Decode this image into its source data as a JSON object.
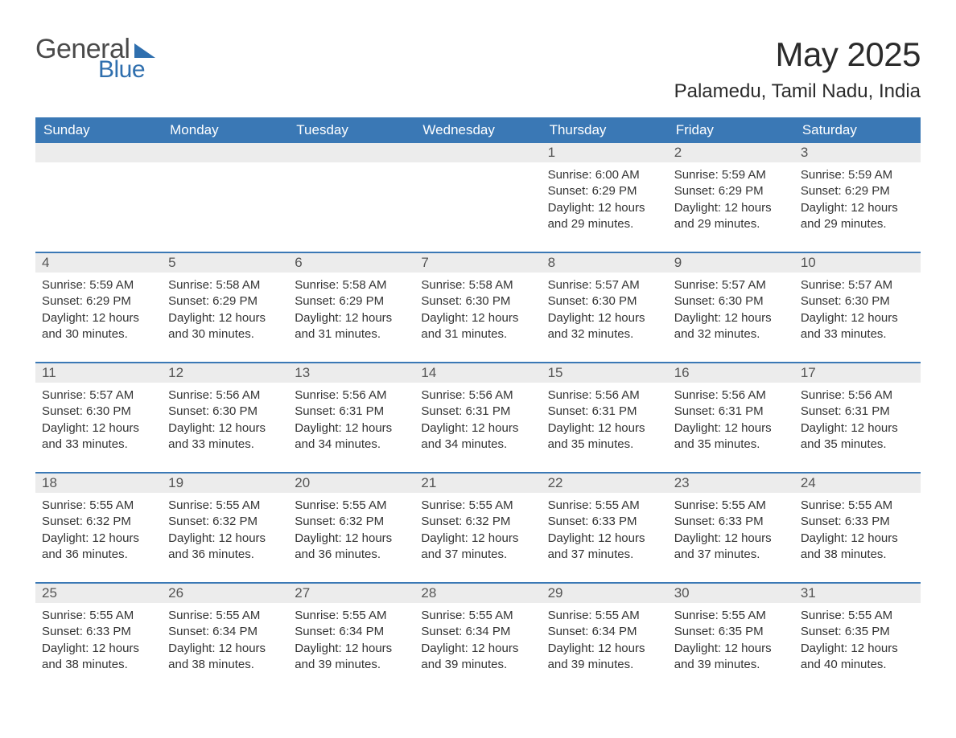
{
  "brand": {
    "word1": "General",
    "word2": "Blue",
    "accent_color": "#2f6fae"
  },
  "title": "May 2025",
  "location": "Palamedu, Tamil Nadu, India",
  "colors": {
    "header_bg": "#3a78b5",
    "header_text": "#ffffff",
    "daynum_bg": "#ececec",
    "daynum_text": "#555555",
    "row_divider": "#3a78b5",
    "body_text": "#333333",
    "page_bg": "#ffffff"
  },
  "typography": {
    "title_fontsize": 42,
    "location_fontsize": 24,
    "header_fontsize": 17,
    "daynum_fontsize": 17,
    "body_fontsize": 15
  },
  "day_names": [
    "Sunday",
    "Monday",
    "Tuesday",
    "Wednesday",
    "Thursday",
    "Friday",
    "Saturday"
  ],
  "weeks": [
    [
      null,
      null,
      null,
      null,
      {
        "num": "1",
        "sunrise": "6:00 AM",
        "sunset": "6:29 PM",
        "daylight": "12 hours and 29 minutes."
      },
      {
        "num": "2",
        "sunrise": "5:59 AM",
        "sunset": "6:29 PM",
        "daylight": "12 hours and 29 minutes."
      },
      {
        "num": "3",
        "sunrise": "5:59 AM",
        "sunset": "6:29 PM",
        "daylight": "12 hours and 29 minutes."
      }
    ],
    [
      {
        "num": "4",
        "sunrise": "5:59 AM",
        "sunset": "6:29 PM",
        "daylight": "12 hours and 30 minutes."
      },
      {
        "num": "5",
        "sunrise": "5:58 AM",
        "sunset": "6:29 PM",
        "daylight": "12 hours and 30 minutes."
      },
      {
        "num": "6",
        "sunrise": "5:58 AM",
        "sunset": "6:29 PM",
        "daylight": "12 hours and 31 minutes."
      },
      {
        "num": "7",
        "sunrise": "5:58 AM",
        "sunset": "6:30 PM",
        "daylight": "12 hours and 31 minutes."
      },
      {
        "num": "8",
        "sunrise": "5:57 AM",
        "sunset": "6:30 PM",
        "daylight": "12 hours and 32 minutes."
      },
      {
        "num": "9",
        "sunrise": "5:57 AM",
        "sunset": "6:30 PM",
        "daylight": "12 hours and 32 minutes."
      },
      {
        "num": "10",
        "sunrise": "5:57 AM",
        "sunset": "6:30 PM",
        "daylight": "12 hours and 33 minutes."
      }
    ],
    [
      {
        "num": "11",
        "sunrise": "5:57 AM",
        "sunset": "6:30 PM",
        "daylight": "12 hours and 33 minutes."
      },
      {
        "num": "12",
        "sunrise": "5:56 AM",
        "sunset": "6:30 PM",
        "daylight": "12 hours and 33 minutes."
      },
      {
        "num": "13",
        "sunrise": "5:56 AM",
        "sunset": "6:31 PM",
        "daylight": "12 hours and 34 minutes."
      },
      {
        "num": "14",
        "sunrise": "5:56 AM",
        "sunset": "6:31 PM",
        "daylight": "12 hours and 34 minutes."
      },
      {
        "num": "15",
        "sunrise": "5:56 AM",
        "sunset": "6:31 PM",
        "daylight": "12 hours and 35 minutes."
      },
      {
        "num": "16",
        "sunrise": "5:56 AM",
        "sunset": "6:31 PM",
        "daylight": "12 hours and 35 minutes."
      },
      {
        "num": "17",
        "sunrise": "5:56 AM",
        "sunset": "6:31 PM",
        "daylight": "12 hours and 35 minutes."
      }
    ],
    [
      {
        "num": "18",
        "sunrise": "5:55 AM",
        "sunset": "6:32 PM",
        "daylight": "12 hours and 36 minutes."
      },
      {
        "num": "19",
        "sunrise": "5:55 AM",
        "sunset": "6:32 PM",
        "daylight": "12 hours and 36 minutes."
      },
      {
        "num": "20",
        "sunrise": "5:55 AM",
        "sunset": "6:32 PM",
        "daylight": "12 hours and 36 minutes."
      },
      {
        "num": "21",
        "sunrise": "5:55 AM",
        "sunset": "6:32 PM",
        "daylight": "12 hours and 37 minutes."
      },
      {
        "num": "22",
        "sunrise": "5:55 AM",
        "sunset": "6:33 PM",
        "daylight": "12 hours and 37 minutes."
      },
      {
        "num": "23",
        "sunrise": "5:55 AM",
        "sunset": "6:33 PM",
        "daylight": "12 hours and 37 minutes."
      },
      {
        "num": "24",
        "sunrise": "5:55 AM",
        "sunset": "6:33 PM",
        "daylight": "12 hours and 38 minutes."
      }
    ],
    [
      {
        "num": "25",
        "sunrise": "5:55 AM",
        "sunset": "6:33 PM",
        "daylight": "12 hours and 38 minutes."
      },
      {
        "num": "26",
        "sunrise": "5:55 AM",
        "sunset": "6:34 PM",
        "daylight": "12 hours and 38 minutes."
      },
      {
        "num": "27",
        "sunrise": "5:55 AM",
        "sunset": "6:34 PM",
        "daylight": "12 hours and 39 minutes."
      },
      {
        "num": "28",
        "sunrise": "5:55 AM",
        "sunset": "6:34 PM",
        "daylight": "12 hours and 39 minutes."
      },
      {
        "num": "29",
        "sunrise": "5:55 AM",
        "sunset": "6:34 PM",
        "daylight": "12 hours and 39 minutes."
      },
      {
        "num": "30",
        "sunrise": "5:55 AM",
        "sunset": "6:35 PM",
        "daylight": "12 hours and 39 minutes."
      },
      {
        "num": "31",
        "sunrise": "5:55 AM",
        "sunset": "6:35 PM",
        "daylight": "12 hours and 40 minutes."
      }
    ]
  ],
  "labels": {
    "sunrise": "Sunrise:",
    "sunset": "Sunset:",
    "daylight": "Daylight:"
  }
}
